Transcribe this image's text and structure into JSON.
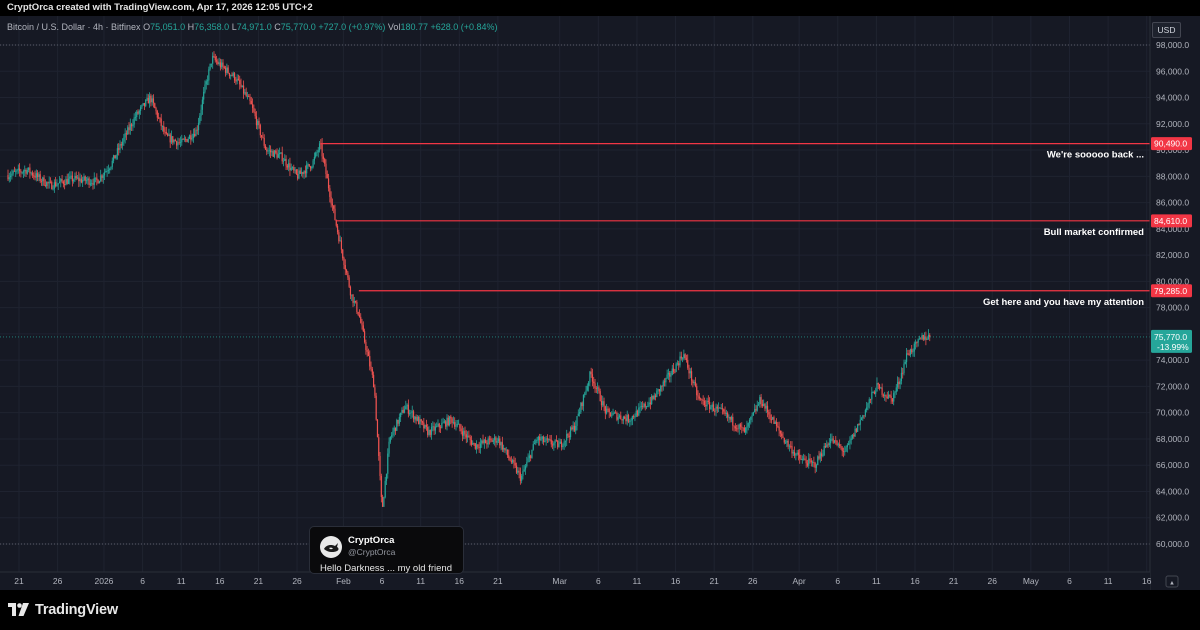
{
  "header": {
    "attribution": "CryptOrca created with TradingView.com, Apr 17, 2026 12:05 UTC+2"
  },
  "legend": {
    "symbol": "Bitcoin / U.S. Dollar · 4h · Bitfinex",
    "o_label": "O",
    "o": "75,051.0",
    "h_label": "H",
    "h": "76,358.0",
    "l_label": "L",
    "l": "74,971.0",
    "c_label": "C",
    "c": "75,770.0",
    "change": "+727.0 (+0.97%)",
    "vol_label": "Vol",
    "vol": "180.77",
    "vol_change": "+628.0 (+0.84%)"
  },
  "currency_button": "USD",
  "colors": {
    "up": "#26a69a",
    "down": "#ef5350",
    "line": "#f23645",
    "background": "#161924",
    "price_badge": "#26a69a"
  },
  "chart_data": {
    "type": "candlestick",
    "symbol": "Bitcoin / U.S. Dollar",
    "interval": "4h",
    "exchange": "Bitfinex",
    "currency": "USD",
    "ylim": [
      59500,
      99000
    ],
    "y_ticks": [
      60000,
      62000,
      64000,
      66000,
      68000,
      70000,
      72000,
      74000,
      76000,
      78000,
      80000,
      82000,
      84000,
      86000,
      88000,
      90000,
      92000,
      94000,
      96000,
      98000
    ],
    "y_tick_labels": [
      "60,000.0",
      "62,000.0",
      "64,000.0",
      "66,000.0",
      "68,000.0",
      "70,000.0",
      "72,000.0",
      "74,000.0",
      "76,000.0",
      "78,000.0",
      "80,000.0",
      "82,000.0",
      "84,000.0",
      "86,000.0",
      "88,000.0",
      "90,000.0",
      "92,000.0",
      "94,000.0",
      "96,000.0",
      "98,000.0"
    ],
    "x_ticks": [
      "21",
      "26",
      "2026",
      "6",
      "11",
      "16",
      "21",
      "26",
      "Feb",
      "6",
      "11",
      "16",
      "21",
      "Mar",
      "6",
      "11",
      "16",
      "21",
      "26",
      "Apr",
      "6",
      "11",
      "16",
      "21",
      "26",
      "May",
      "6",
      "11",
      "16"
    ],
    "x_tick_dates": [
      "2025-12-21",
      "2025-12-26",
      "2026-01-01",
      "2026-01-06",
      "2026-01-11",
      "2026-01-16",
      "2026-01-21",
      "2026-01-26",
      "2026-02-01",
      "2026-02-06",
      "2026-02-11",
      "2026-02-16",
      "2026-02-21",
      "2026-03-01",
      "2026-03-06",
      "2026-03-11",
      "2026-03-16",
      "2026-03-21",
      "2026-03-26",
      "2026-04-01",
      "2026-04-06",
      "2026-04-11",
      "2026-04-16",
      "2026-04-21",
      "2026-04-26",
      "2026-05-01",
      "2026-05-06",
      "2026-05-11",
      "2026-05-16"
    ],
    "price_path": [
      [
        "2025-12-19",
        88000
      ],
      [
        "2025-12-22",
        88500
      ],
      [
        "2025-12-25",
        87300
      ],
      [
        "2025-12-28",
        87800
      ],
      [
        "2025-12-31",
        87600
      ],
      [
        "2026-01-02",
        89000
      ],
      [
        "2026-01-05",
        92500
      ],
      [
        "2026-01-07",
        94000
      ],
      [
        "2026-01-09",
        91000
      ],
      [
        "2026-01-11",
        90500
      ],
      [
        "2026-01-13",
        91500
      ],
      [
        "2026-01-14",
        94500
      ],
      [
        "2026-01-15",
        97000
      ],
      [
        "2026-01-16",
        96500
      ],
      [
        "2026-01-18",
        95500
      ],
      [
        "2026-01-20",
        93500
      ],
      [
        "2026-01-22",
        90000
      ],
      [
        "2026-01-24",
        89500
      ],
      [
        "2026-01-26",
        88000
      ],
      [
        "2026-01-28",
        89000
      ],
      [
        "2026-01-29",
        90400
      ],
      [
        "2026-01-31",
        84500
      ],
      [
        "2026-02-02",
        79000
      ],
      [
        "2026-02-03",
        77500
      ],
      [
        "2026-02-05",
        72000
      ],
      [
        "2026-02-06",
        62500
      ],
      [
        "2026-02-07",
        68000
      ],
      [
        "2026-02-09",
        70500
      ],
      [
        "2026-02-12",
        68500
      ],
      [
        "2026-02-15",
        69500
      ],
      [
        "2026-02-18",
        67500
      ],
      [
        "2026-02-21",
        68000
      ],
      [
        "2026-02-24",
        65000
      ],
      [
        "2026-02-26",
        68000
      ],
      [
        "2026-03-01",
        67500
      ],
      [
        "2026-03-03",
        69000
      ],
      [
        "2026-03-05",
        73000
      ],
      [
        "2026-03-07",
        70000
      ],
      [
        "2026-03-10",
        69500
      ],
      [
        "2026-03-13",
        71000
      ],
      [
        "2026-03-16",
        73500
      ],
      [
        "2026-03-17",
        74500
      ],
      [
        "2026-03-19",
        71000
      ],
      [
        "2026-03-22",
        70000
      ],
      [
        "2026-03-25",
        68500
      ],
      [
        "2026-03-27",
        71000
      ],
      [
        "2026-03-30",
        68000
      ],
      [
        "2026-04-01",
        66500
      ],
      [
        "2026-04-03",
        66000
      ],
      [
        "2026-04-05",
        68000
      ],
      [
        "2026-04-07",
        67000
      ],
      [
        "2026-04-09",
        69500
      ],
      [
        "2026-04-11",
        72000
      ],
      [
        "2026-04-13",
        71000
      ],
      [
        "2026-04-14",
        72500
      ],
      [
        "2026-04-15",
        74500
      ],
      [
        "2026-04-16",
        75000
      ],
      [
        "2026-04-17",
        75770
      ]
    ],
    "current_price": {
      "value": 75770,
      "label": "75,770.0",
      "change_label": "-13.99%"
    },
    "annotations": [
      {
        "price": 90490,
        "label": "90,490.0",
        "text": "We're sooooo back ...",
        "start": "2026-01-29"
      },
      {
        "price": 84610,
        "label": "84,610.0",
        "text": "Bull market confirmed",
        "start": "2026-01-31"
      },
      {
        "price": 79285,
        "label": "79,285.0",
        "text": "Get here and you have my attention",
        "start": "2026-02-03"
      }
    ],
    "dotted_levels": [
      98000,
      60000
    ]
  },
  "card": {
    "name": "CryptOrca",
    "handle": "@CryptOrca",
    "message": "Hello Darkness ... my old friend"
  },
  "brand": {
    "name": "TradingView"
  }
}
